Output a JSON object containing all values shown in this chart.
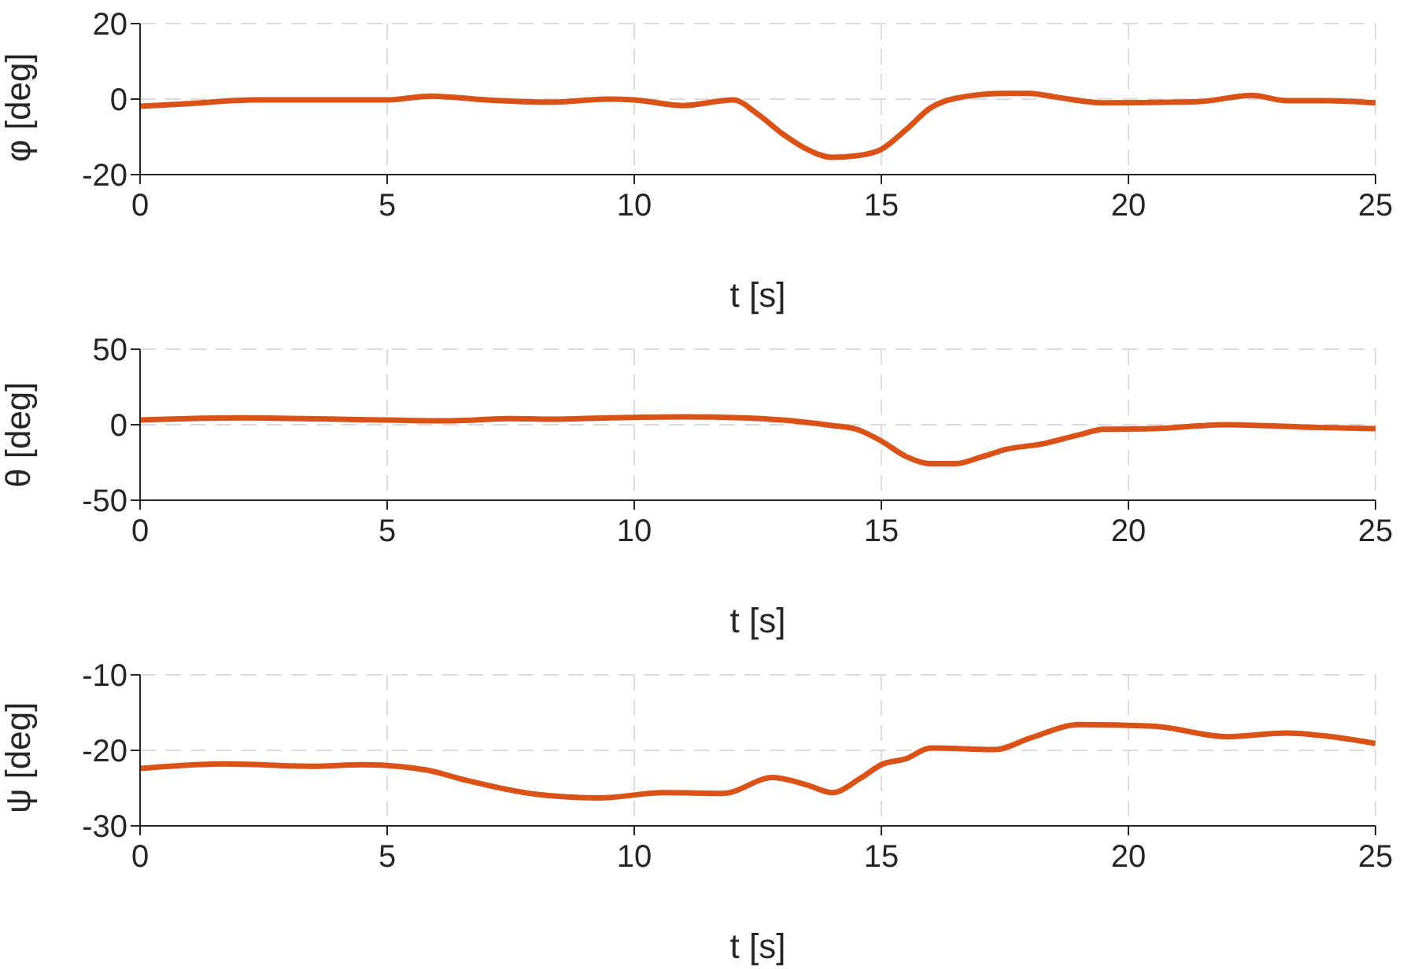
{
  "chart_data": [
    {
      "type": "line",
      "xlabel": "t [s]",
      "ylabel": "φ [deg]",
      "xlim": [
        0,
        25
      ],
      "xticks": [
        0,
        5,
        10,
        15,
        20,
        25
      ],
      "ylim": [
        -20,
        20
      ],
      "yticks": [
        -20,
        0,
        20
      ],
      "grid": true,
      "legend": false,
      "marker": "none",
      "line_style": "solid",
      "x": [
        0,
        1,
        2.3,
        4,
        5,
        5.9,
        7,
        8.3,
        9.5,
        10,
        11,
        12,
        12.5,
        13,
        13.5,
        14,
        14.5,
        15,
        15.5,
        16,
        16.5,
        17.5,
        18,
        18.5,
        19.5,
        21,
        21.5,
        22.5,
        23.2,
        24,
        25
      ],
      "series": [
        {
          "color": "#d95319",
          "values": [
            -1.9,
            -1.2,
            -0.2,
            -0.2,
            -0.2,
            0.8,
            -0.2,
            -0.8,
            0,
            -0.2,
            -1.7,
            -0.2,
            -4,
            -9.2,
            -13.3,
            -15.4,
            -15,
            -13.3,
            -8.1,
            -2.3,
            0.2,
            1.5,
            1.5,
            0.6,
            -1,
            -0.8,
            -0.6,
            1,
            -0.4,
            -0.4,
            -1
          ]
        }
      ]
    },
    {
      "type": "line",
      "xlabel": "t [s]",
      "ylabel": "θ [deg]",
      "xlim": [
        0,
        25
      ],
      "xticks": [
        0,
        5,
        10,
        15,
        20,
        25
      ],
      "ylim": [
        -50,
        50
      ],
      "yticks": [
        -50,
        0,
        50
      ],
      "grid": true,
      "legend": false,
      "marker": "none",
      "line_style": "solid",
      "x": [
        0,
        2,
        5,
        6.3,
        7.5,
        8.3,
        9.5,
        11,
        12.2,
        13,
        14,
        14.5,
        15,
        15.5,
        16,
        16.5,
        17,
        17.5,
        18.3,
        19,
        19.5,
        20.5,
        22,
        23.5,
        25
      ],
      "series": [
        {
          "color": "#d95319",
          "values": [
            3.1,
            4.6,
            3.1,
            2.6,
            4.1,
            3.6,
            4.6,
            5.2,
            4.6,
            3.1,
            -0.5,
            -3,
            -10.8,
            -21,
            -25.8,
            -25.8,
            -21.6,
            -16.5,
            -12.4,
            -6.7,
            -3,
            -2.6,
            0,
            -1.5,
            -2.6
          ]
        }
      ]
    },
    {
      "type": "line",
      "xlabel": "t [s]",
      "ylabel": "ψ [deg]",
      "xlim": [
        0,
        25
      ],
      "xticks": [
        0,
        5,
        10,
        15,
        20,
        25
      ],
      "ylim": [
        -30,
        -10
      ],
      "yticks": [
        -30,
        -20,
        -10
      ],
      "grid": true,
      "legend": false,
      "marker": "none",
      "line_style": "solid",
      "x": [
        0,
        1.7,
        3.5,
        4.5,
        5.8,
        6.5,
        8,
        9.3,
        10.6,
        11.8,
        12.8,
        13.5,
        14,
        14.6,
        15,
        15.5,
        16,
        17.3,
        18,
        19,
        20.5,
        22,
        23.2,
        24,
        25
      ],
      "series": [
        {
          "color": "#d95319",
          "values": [
            -22.4,
            -21.8,
            -22.1,
            -21.9,
            -22.6,
            -23.8,
            -25.8,
            -26.3,
            -25.6,
            -25.7,
            -23.6,
            -24.6,
            -25.6,
            -23.6,
            -21.9,
            -21.1,
            -19.7,
            -19.9,
            -18.4,
            -16.6,
            -16.8,
            -18.2,
            -17.7,
            -18.1,
            -19.1
          ]
        }
      ]
    }
  ]
}
